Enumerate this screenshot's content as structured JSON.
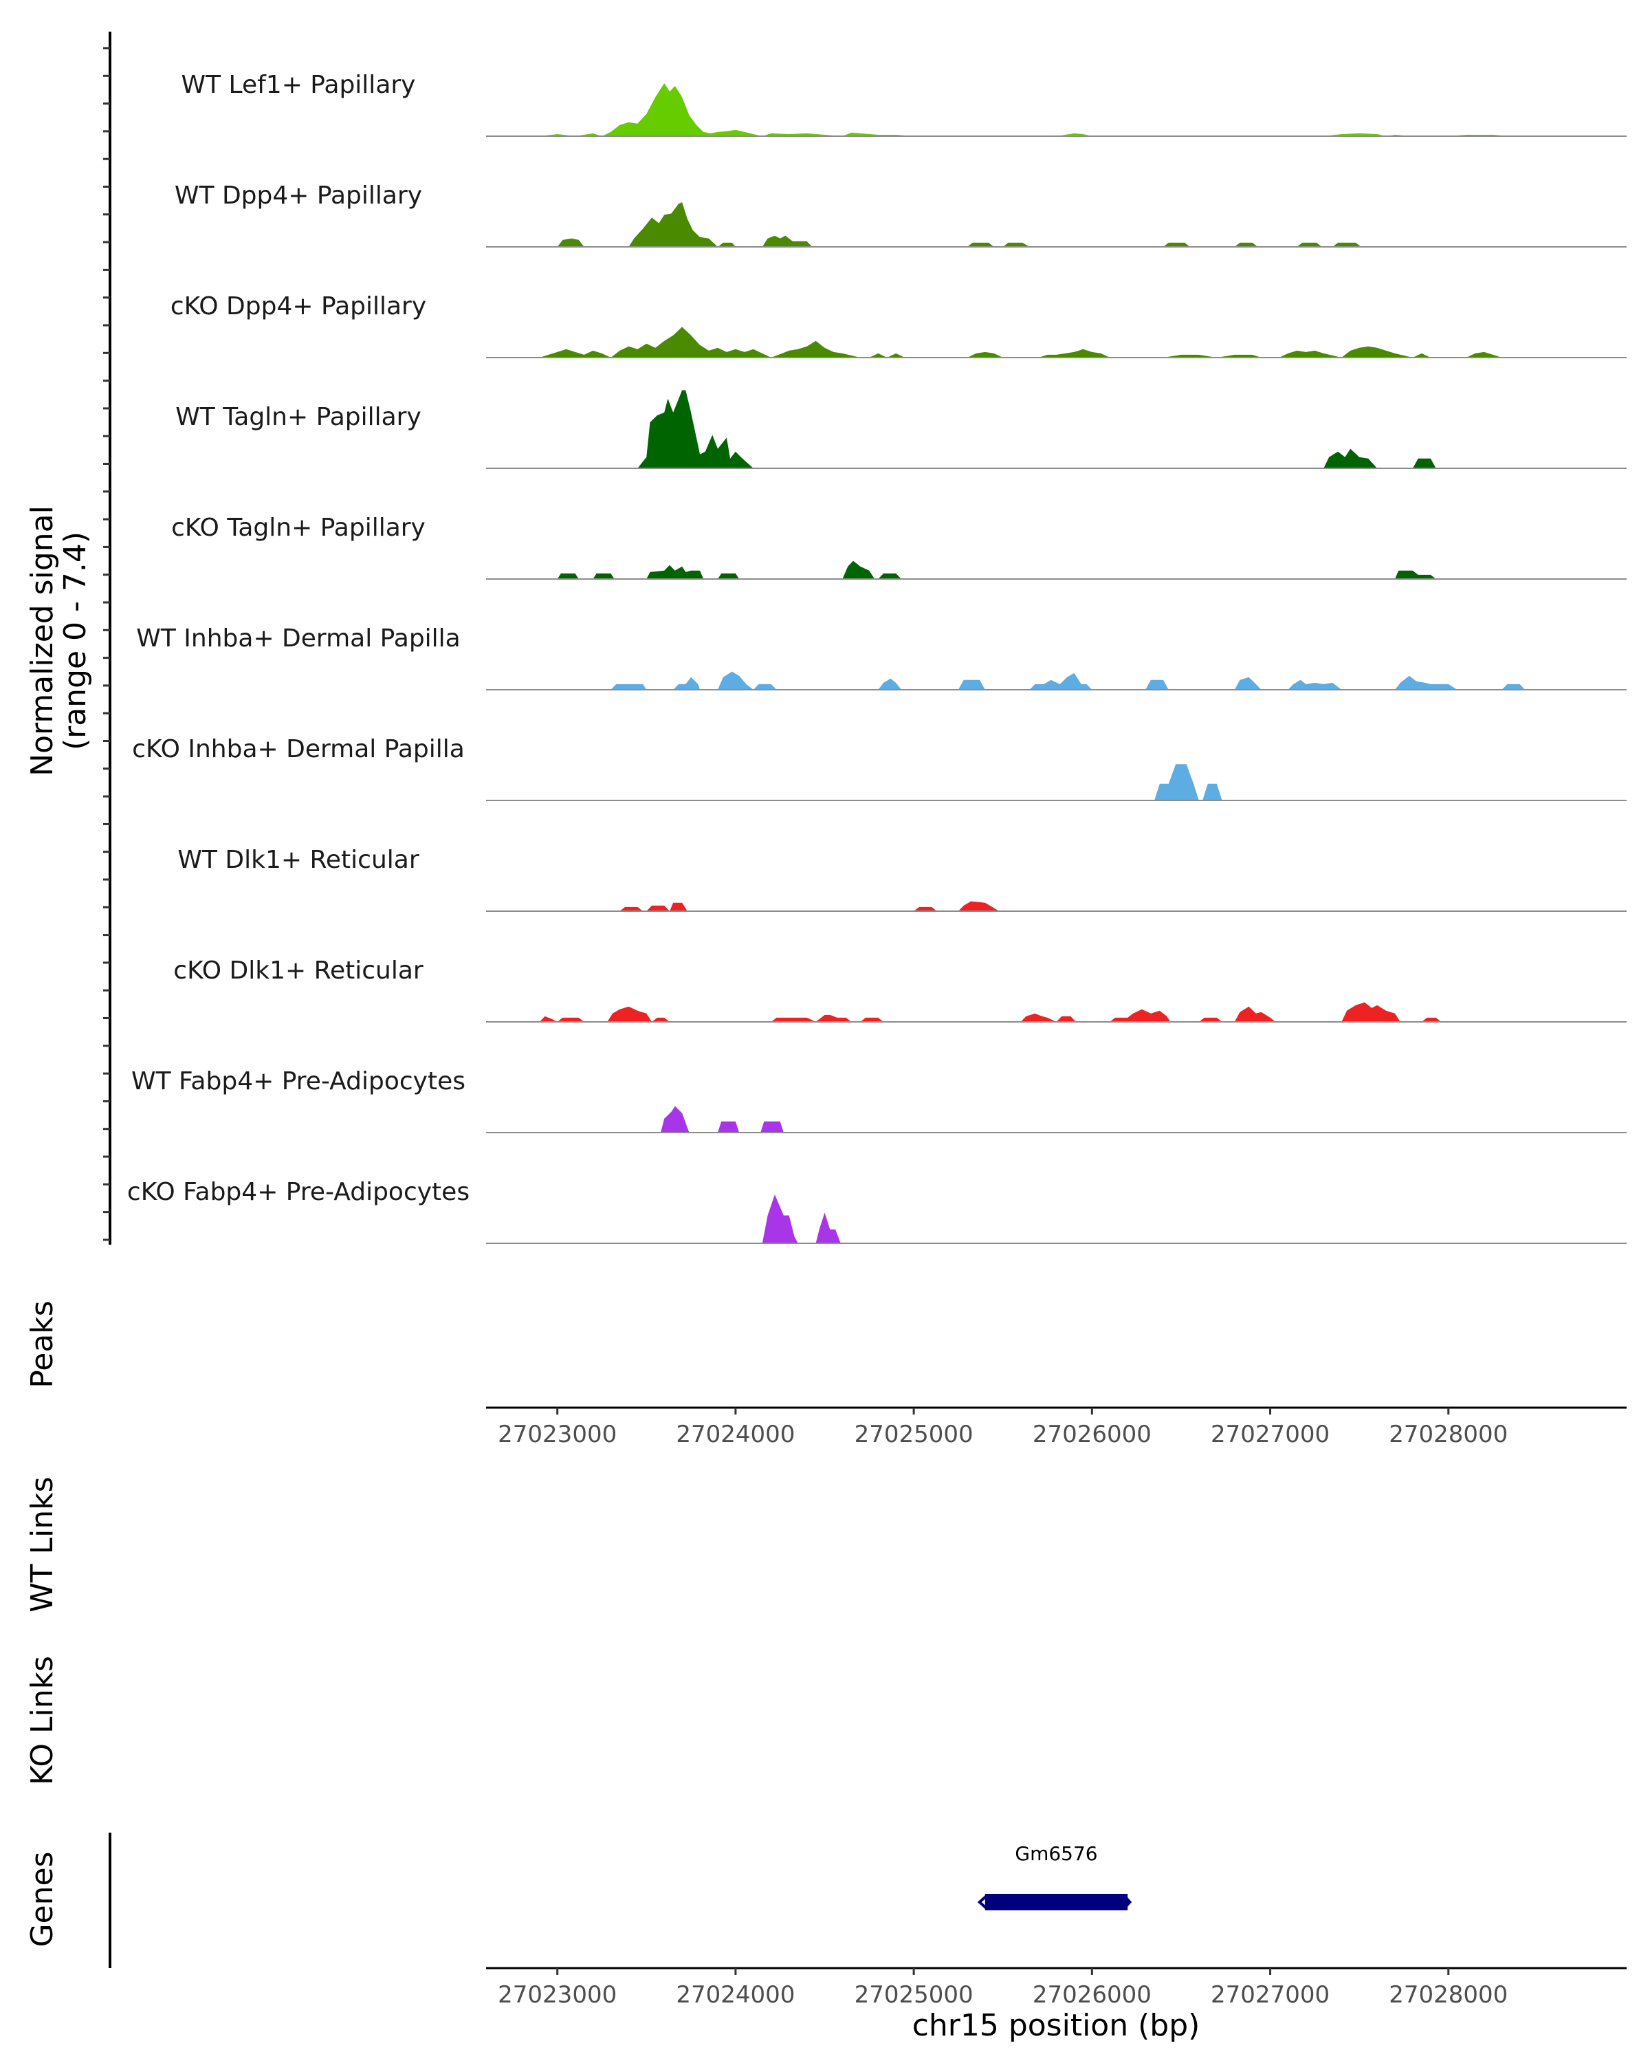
{
  "chart_data": {
    "type": "area",
    "title": "",
    "ylabel": "Normalized signal",
    "ylabel_range": "(range 0 - 7.4)",
    "ylim": [
      0,
      7.4
    ],
    "xlim": [
      27022600,
      27029000
    ],
    "xlabel": "chr15 position (bp)",
    "x_ticks": [
      27023000,
      27024000,
      27025000,
      27026000,
      27027000,
      27028000
    ],
    "x_tick_labels": [
      "27023000",
      "27024000",
      "27025000",
      "27026000",
      "27027000",
      "27028000"
    ],
    "series": [
      {
        "name": "WT Lef1+ Papillary",
        "color": "#66CC00",
        "x": [
          27022900,
          27023000,
          27023100,
          27023200,
          27023250,
          27023300,
          27023350,
          27023400,
          27023450,
          27023500,
          27023550,
          27023600,
          27023630,
          27023660,
          27023700,
          27023740,
          27023780,
          27023820,
          27023860,
          27023900,
          27023950,
          27024000,
          27024050,
          27024100,
          27024150,
          27024200,
          27024300,
          27024400,
          27024500,
          27024600,
          27024650,
          27024700,
          27024800,
          27024900,
          27025000,
          27025400,
          27025500,
          27025800,
          27025900,
          27025950,
          27026000,
          27027300,
          27027400,
          27027500,
          27027600,
          27027650,
          27027700,
          27027800,
          27028000,
          27028100,
          27028250,
          27028350
        ],
        "y": [
          0,
          0.15,
          0,
          0.2,
          0,
          0.3,
          0.8,
          1.0,
          0.9,
          1.6,
          2.8,
          3.8,
          3.2,
          3.6,
          2.8,
          1.5,
          0.8,
          0.3,
          0.2,
          0.3,
          0.35,
          0.45,
          0.3,
          0.15,
          0,
          0.2,
          0.15,
          0.2,
          0.1,
          0,
          0.25,
          0.2,
          0.1,
          0.1,
          0,
          0,
          0,
          0,
          0.2,
          0.15,
          0,
          0,
          0.15,
          0.2,
          0.15,
          0,
          0.1,
          0,
          0,
          0.1,
          0.1,
          0
        ],
        "peak_max": 3.8
      },
      {
        "name": "WT Dpp4+ Papillary",
        "color": "#4A8A00",
        "x": [
          27023000,
          27023030,
          27023080,
          27023120,
          27023150,
          27023400,
          27023430,
          27023480,
          27023530,
          27023570,
          27023600,
          27023640,
          27023680,
          27023700,
          27023730,
          27023760,
          27023800,
          27023850,
          27023900,
          27023930,
          27023980,
          27024000,
          27024150,
          27024180,
          27024220,
          27024250,
          27024280,
          27024320,
          27024400,
          27024430,
          27025300,
          27025330,
          27025420,
          27025450,
          27025500,
          27025530,
          27025610,
          27025650,
          27026400,
          27026430,
          27026520,
          27026550,
          27026800,
          27026830,
          27026900,
          27026930,
          27027150,
          27027180,
          27027260,
          27027290,
          27027350,
          27027380,
          27027480,
          27027510
        ],
        "y": [
          0,
          0.5,
          0.6,
          0.5,
          0,
          0,
          0.6,
          1.3,
          2.1,
          1.7,
          2.3,
          2.4,
          3.1,
          3.2,
          2.0,
          1.2,
          0.7,
          0.6,
          0,
          0.3,
          0.3,
          0,
          0,
          0.6,
          0.8,
          0.6,
          0.8,
          0.4,
          0.4,
          0,
          0,
          0.3,
          0.3,
          0,
          0,
          0.3,
          0.3,
          0,
          0,
          0.3,
          0.3,
          0,
          0,
          0.3,
          0.3,
          0,
          0,
          0.3,
          0.3,
          0,
          0,
          0.3,
          0.3,
          0
        ],
        "peak_max": 3.2
      },
      {
        "name": "cKO Dpp4+ Papillary",
        "color": "#4A8A00",
        "x": [
          27022900,
          27022950,
          27023000,
          27023050,
          27023100,
          27023150,
          27023200,
          27023250,
          27023300,
          27023350,
          27023400,
          27023450,
          27023500,
          27023550,
          27023600,
          27023650,
          27023700,
          27023750,
          27023800,
          27023850,
          27023900,
          27023950,
          27024000,
          27024050,
          27024100,
          27024150,
          27024200,
          27024300,
          27024350,
          27024400,
          27024450,
          27024500,
          27024550,
          27024600,
          27024700,
          27024750,
          27024800,
          27024850,
          27024900,
          27024950,
          27025300,
          27025350,
          27025400,
          27025450,
          27025500,
          27025700,
          27025750,
          27025800,
          27025850,
          27025900,
          27025950,
          27026000,
          27026050,
          27026100,
          27026400,
          27026500,
          27026600,
          27026700,
          27026800,
          27026900,
          27026950,
          27027050,
          27027100,
          27027150,
          27027200,
          27027250,
          27027300,
          27027400,
          27027450,
          27027500,
          27027550,
          27027600,
          27027650,
          27027700,
          27027800,
          27027850,
          27027900,
          27028100,
          27028150,
          27028200,
          27028250,
          27028300
        ],
        "y": [
          0,
          0.2,
          0.4,
          0.6,
          0.4,
          0.2,
          0.5,
          0.3,
          0,
          0.5,
          0.8,
          0.6,
          1.0,
          0.7,
          1.2,
          1.6,
          2.2,
          1.6,
          0.9,
          0.5,
          0.7,
          0.4,
          0.6,
          0.4,
          0.6,
          0.3,
          0,
          0.5,
          0.6,
          0.8,
          1.2,
          0.7,
          0.4,
          0.3,
          0,
          0,
          0.3,
          0,
          0.3,
          0,
          0,
          0.3,
          0.4,
          0.3,
          0,
          0,
          0.2,
          0.2,
          0.3,
          0.4,
          0.6,
          0.4,
          0.3,
          0,
          0,
          0.2,
          0.2,
          0,
          0.2,
          0.2,
          0,
          0,
          0.3,
          0.5,
          0.4,
          0.5,
          0.3,
          0,
          0.5,
          0.7,
          0.8,
          0.7,
          0.5,
          0.3,
          0,
          0.3,
          0,
          0,
          0.3,
          0.4,
          0.2,
          0
        ],
        "peak_max": 2.2
      },
      {
        "name": "WT Tagln+ Papillary",
        "color": "#006400",
        "x": [
          27023450,
          27023500,
          27023520,
          27023560,
          27023600,
          27023620,
          27023650,
          27023700,
          27023720,
          27023750,
          27023800,
          27023830,
          27023870,
          27023900,
          27023950,
          27023970,
          27024000,
          27024030,
          27024100,
          27027300,
          27027330,
          27027380,
          27027420,
          27027450,
          27027500,
          27027550,
          27027600,
          27027800,
          27027830,
          27027900,
          27027930
        ],
        "y": [
          0,
          0.8,
          3.3,
          3.8,
          4.0,
          5.0,
          4.0,
          5.6,
          5.6,
          4.0,
          1.0,
          1.2,
          2.4,
          1.4,
          2.2,
          0.7,
          1.2,
          0.8,
          0,
          0,
          0.8,
          1.2,
          0.8,
          1.4,
          0.8,
          0.7,
          0,
          0,
          0.7,
          0.7,
          0
        ],
        "peak_max": 5.6
      },
      {
        "name": "cKO Tagln+ Papillary",
        "color": "#006400",
        "x": [
          27023000,
          27023020,
          27023100,
          27023120,
          27023200,
          27023220,
          27023300,
          27023320,
          27023500,
          27023520,
          27023600,
          27023630,
          27023660,
          27023700,
          27023720,
          27023750,
          27023800,
          27023820,
          27023900,
          27023920,
          27024000,
          27024020,
          27024600,
          27024630,
          27024660,
          27024700,
          27024750,
          27024780,
          27024800,
          27024830,
          27024900,
          27024930,
          27027700,
          27027720,
          27027800,
          27027830,
          27027900,
          27027930
        ],
        "y": [
          0,
          0.4,
          0.4,
          0,
          0,
          0.4,
          0.4,
          0,
          0,
          0.5,
          0.6,
          1.0,
          0.6,
          0.9,
          0.5,
          0.6,
          0.6,
          0,
          0,
          0.4,
          0.4,
          0,
          0,
          0.9,
          1.3,
          0.9,
          0.6,
          0,
          0,
          0.4,
          0.4,
          0,
          0,
          0.6,
          0.6,
          0.3,
          0.3,
          0
        ],
        "peak_max": 1.3
      },
      {
        "name": "WT Inhba+ Dermal Papilla",
        "color": "#5DADE2",
        "x": [
          27023300,
          27023330,
          27023480,
          27023500,
          27023650,
          27023680,
          27023720,
          27023750,
          27023790,
          27023800,
          27023900,
          27023930,
          27023980,
          27024020,
          27024060,
          27024100,
          27024130,
          27024170,
          27024200,
          27024230,
          27024800,
          27024830,
          27024870,
          27024900,
          27024930,
          27025250,
          27025280,
          27025330,
          27025370,
          27025400,
          27025650,
          27025680,
          27025730,
          27025770,
          27025820,
          27025860,
          27025900,
          27025940,
          27025970,
          27026000,
          27026300,
          27026330,
          27026400,
          27026430,
          27026800,
          27026830,
          27026880,
          27026920,
          27026950,
          27027100,
          27027130,
          27027170,
          27027200,
          27027250,
          27027300,
          27027350,
          27027400,
          27027700,
          27027730,
          27027780,
          27027820,
          27027870,
          27027900,
          27027950,
          27028000,
          27028050,
          27028300,
          27028330,
          27028400,
          27028430
        ],
        "y": [
          0,
          0.4,
          0.4,
          0,
          0,
          0.4,
          0.4,
          0.9,
          0.4,
          0,
          0,
          0.9,
          1.3,
          1.0,
          0.4,
          0,
          0.4,
          0.4,
          0.4,
          0,
          0,
          0.5,
          0.8,
          0.5,
          0,
          0,
          0.7,
          0.7,
          0.7,
          0,
          0,
          0.4,
          0.4,
          0.7,
          0.4,
          0.9,
          1.2,
          0.4,
          0.4,
          0,
          0,
          0.7,
          0.7,
          0,
          0,
          0.7,
          0.9,
          0.4,
          0,
          0,
          0.4,
          0.7,
          0.4,
          0.5,
          0.4,
          0.5,
          0,
          0,
          0.5,
          1.0,
          0.6,
          0.5,
          0.4,
          0.4,
          0.4,
          0,
          0,
          0.4,
          0.4,
          0
        ],
        "peak_max": 1.3
      },
      {
        "name": "cKO Inhba+ Dermal Papilla",
        "color": "#5DADE2",
        "x": [
          27026350,
          27026380,
          27026430,
          27026470,
          27026530,
          27026570,
          27026600,
          27026620,
          27026650,
          27026700,
          27026730
        ],
        "y": [
          0,
          1.2,
          1.2,
          2.6,
          2.6,
          1.2,
          0,
          0,
          1.2,
          1.2,
          0
        ],
        "peak_max": 2.6
      },
      {
        "name": "WT Dlk1+ Reticular",
        "color": "#EE2222",
        "x": [
          27023350,
          27023380,
          27023450,
          27023480,
          27023500,
          27023530,
          27023600,
          27023630,
          27023650,
          27023700,
          27023730,
          27025000,
          27025030,
          27025100,
          27025130,
          27025250,
          27025280,
          27025320,
          27025400,
          27025440,
          27025480
        ],
        "y": [
          0,
          0.3,
          0.3,
          0,
          0,
          0.4,
          0.4,
          0,
          0.6,
          0.6,
          0,
          0,
          0.3,
          0.3,
          0,
          0,
          0.4,
          0.7,
          0.6,
          0.3,
          0
        ],
        "peak_max": 0.7
      },
      {
        "name": "cKO Dlk1+ Reticular",
        "color": "#EE2222",
        "x": [
          27022900,
          27022930,
          27022970,
          27023000,
          27023030,
          27023120,
          27023150,
          27023280,
          27023310,
          27023350,
          27023400,
          27023450,
          27023500,
          27023530,
          27023560,
          27023600,
          27023630,
          27023720,
          27023750,
          27024200,
          27024230,
          27024350,
          27024400,
          27024450,
          27024500,
          27024530,
          27024570,
          27024620,
          27024650,
          27024700,
          27024730,
          27024800,
          27024830,
          27025600,
          27025630,
          27025680,
          27025720,
          27025750,
          27025800,
          27025830,
          27025880,
          27025910,
          27026100,
          27026130,
          27026200,
          27026230,
          27026280,
          27026330,
          27026380,
          27026420,
          27026440,
          27026600,
          27026630,
          27026700,
          27026730,
          27026800,
          27026830,
          27026880,
          27026920,
          27026950,
          27027000,
          27027030,
          27027400,
          27027430,
          27027480,
          27027530,
          27027570,
          27027600,
          27027650,
          27027700,
          27027730,
          27027850,
          27027880,
          27027930,
          27027960
        ],
        "y": [
          0,
          0.4,
          0.2,
          0,
          0.3,
          0.3,
          0,
          0,
          0.6,
          0.9,
          1.1,
          0.8,
          0.6,
          0,
          0.3,
          0.3,
          0,
          0,
          0,
          0,
          0.3,
          0.3,
          0.3,
          0,
          0.5,
          0.5,
          0.3,
          0.3,
          0,
          0,
          0.3,
          0.3,
          0,
          0,
          0.4,
          0.6,
          0.4,
          0.3,
          0,
          0.4,
          0.4,
          0,
          0,
          0.3,
          0.3,
          0.6,
          0.9,
          0.6,
          0.8,
          0.4,
          0,
          0,
          0.3,
          0.3,
          0,
          0,
          0.7,
          1.1,
          0.6,
          0.7,
          0.3,
          0,
          0,
          0.8,
          1.2,
          1.4,
          1.0,
          1.2,
          0.8,
          0.6,
          0,
          0,
          0.3,
          0.3,
          0
        ],
        "peak_max": 1.4
      },
      {
        "name": "WT Fabp4+ Pre-Adipocytes",
        "color": "#A935E8",
        "x": [
          27023580,
          27023600,
          27023640,
          27023660,
          27023700,
          27023740,
          27023900,
          27023920,
          27024000,
          27024020,
          27024140,
          27024160,
          27024250,
          27024270
        ],
        "y": [
          0,
          1.0,
          1.5,
          1.9,
          1.4,
          0,
          0,
          0.8,
          0.8,
          0,
          0,
          0.8,
          0.8,
          0
        ],
        "peak_max": 1.9
      },
      {
        "name": "cKO Fabp4+ Pre-Adipocytes",
        "color": "#A935E8",
        "x": [
          27024150,
          27024180,
          27024220,
          27024270,
          27024300,
          27024330,
          27024350,
          27024450,
          27024470,
          27024500,
          27024530,
          27024560,
          27024590
        ],
        "y": [
          0,
          2.0,
          3.5,
          2.0,
          2.0,
          0.5,
          0,
          0,
          1.0,
          2.2,
          1.0,
          1.0,
          0
        ],
        "peak_max": 3.5
      }
    ],
    "tracks": {
      "peaks": {
        "label": "Peaks"
      },
      "wt_links": {
        "label": "WT Links"
      },
      "ko_links": {
        "label": "KO Links"
      },
      "genes": {
        "label": "Genes",
        "items": [
          {
            "name": "Gm6576",
            "start": 27025400,
            "end": 27026200,
            "strand": "-",
            "color": "#00007F"
          }
        ]
      }
    }
  }
}
